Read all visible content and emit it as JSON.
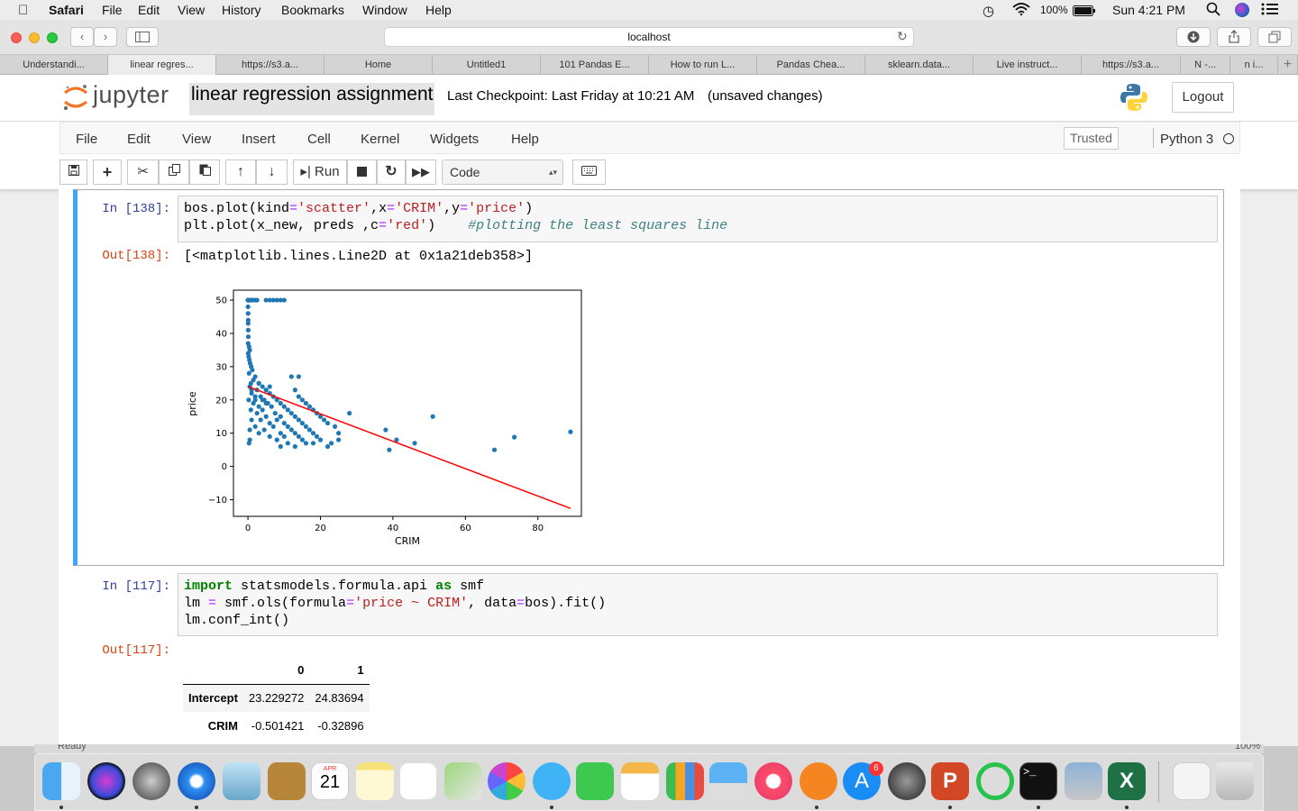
{
  "menubar": {
    "apple": "",
    "app": "Safari",
    "items": [
      "File",
      "Edit",
      "View",
      "History",
      "Bookmarks",
      "Window",
      "Help"
    ],
    "battery": "100%",
    "clock": "Sun 4:21 PM"
  },
  "browser": {
    "address": "localhost",
    "tabs": [
      "Understandi...",
      "linear regres...",
      "https://s3.a...",
      "Home",
      "Untitled1",
      "101 Pandas E...",
      "How to run L...",
      "Pandas Chea...",
      "sklearn.data...",
      "Live instruct...",
      "https://s3.a...",
      "N -...",
      "n i..."
    ],
    "active_tab": 1,
    "new_tab": "+"
  },
  "jupyter": {
    "logo": "jupyter",
    "notebook_name": "linear regression assignment",
    "checkpoint": "Last Checkpoint: Last Friday at 10:21 AM",
    "unsaved": "(unsaved changes)",
    "logout": "Logout",
    "menu": [
      "File",
      "Edit",
      "View",
      "Insert",
      "Cell",
      "Kernel",
      "Widgets",
      "Help"
    ],
    "trusted": "Trusted",
    "kernel": "Python 3",
    "run_label": "Run",
    "cell_type": "Code"
  },
  "cell1": {
    "in_prompt": "In [138]:",
    "out_prompt": "Out[138]:",
    "output_text": "[<matplotlib.lines.Line2D at 0x1a21deb358>]"
  },
  "cell2": {
    "in_prompt": "In [117]:",
    "out_prompt": "Out[117]:",
    "table": {
      "columns": [
        "",
        "0",
        "1"
      ],
      "rows": [
        [
          "Intercept",
          "23.229272",
          "24.83694"
        ],
        [
          "CRIM",
          "-0.501421",
          "-0.32896"
        ]
      ]
    }
  },
  "status": {
    "text": "Ready",
    "zoom": "100%"
  },
  "dock": {
    "calendar_month": "APR",
    "calendar_day": "21",
    "badge": "6"
  },
  "chart_data": {
    "type": "scatter",
    "xlabel": "CRIM",
    "ylabel": "price",
    "xlim": [
      -4,
      92
    ],
    "ylim": [
      -15,
      53
    ],
    "xticks": [
      0,
      20,
      40,
      60,
      80
    ],
    "yticks": [
      -10,
      0,
      10,
      20,
      30,
      40,
      50
    ],
    "grid": false,
    "series": [
      {
        "kind": "scatter",
        "color": "#1f77b4",
        "points": [
          [
            0.01,
            50
          ],
          [
            0.03,
            50
          ],
          [
            0.05,
            50
          ],
          [
            0.08,
            50
          ],
          [
            0.1,
            50
          ],
          [
            0.15,
            50
          ],
          [
            0.2,
            50
          ],
          [
            0.3,
            50
          ],
          [
            0.5,
            50
          ],
          [
            0.7,
            50
          ],
          [
            1.0,
            50
          ],
          [
            1.3,
            50
          ],
          [
            2.0,
            50
          ],
          [
            2.5,
            50
          ],
          [
            5,
            50
          ],
          [
            6,
            50
          ],
          [
            7,
            50
          ],
          [
            8,
            50
          ],
          [
            9,
            50
          ],
          [
            10,
            50
          ],
          [
            0.02,
            48
          ],
          [
            0.04,
            46
          ],
          [
            0.06,
            44
          ],
          [
            0.05,
            43
          ],
          [
            0.08,
            41
          ],
          [
            0.1,
            39
          ],
          [
            0.05,
            37
          ],
          [
            0.3,
            36
          ],
          [
            0.5,
            35
          ],
          [
            0.07,
            34
          ],
          [
            0.2,
            33
          ],
          [
            0.4,
            32
          ],
          [
            0.6,
            31
          ],
          [
            0.9,
            30
          ],
          [
            1.2,
            29
          ],
          [
            0.3,
            28
          ],
          [
            2.0,
            27
          ],
          [
            1.5,
            26
          ],
          [
            0.8,
            25
          ],
          [
            3.0,
            25
          ],
          [
            4.0,
            24
          ],
          [
            0.5,
            24
          ],
          [
            2.5,
            23
          ],
          [
            5.0,
            23
          ],
          [
            6.0,
            22
          ],
          [
            1.0,
            22
          ],
          [
            3.5,
            21
          ],
          [
            7.0,
            21
          ],
          [
            0.2,
            20
          ],
          [
            2.0,
            20
          ],
          [
            4.5,
            20
          ],
          [
            8.0,
            20
          ],
          [
            9.0,
            19
          ],
          [
            1.5,
            19
          ],
          [
            5.5,
            19
          ],
          [
            10.0,
            18
          ],
          [
            3.0,
            18
          ],
          [
            6.5,
            18
          ],
          [
            0.8,
            17
          ],
          [
            11.0,
            17
          ],
          [
            4.0,
            17
          ],
          [
            7.5,
            16
          ],
          [
            12.0,
            16
          ],
          [
            2.5,
            16
          ],
          [
            9.0,
            15
          ],
          [
            5.0,
            15
          ],
          [
            13.0,
            15
          ],
          [
            1.0,
            14
          ],
          [
            8.0,
            14
          ],
          [
            14.0,
            14
          ],
          [
            3.5,
            14
          ],
          [
            10.0,
            13
          ],
          [
            6.0,
            13
          ],
          [
            15.0,
            13
          ],
          [
            2.0,
            12
          ],
          [
            11.0,
            12
          ],
          [
            7.0,
            12
          ],
          [
            16.0,
            12
          ],
          [
            0.5,
            11
          ],
          [
            12.0,
            11
          ],
          [
            4.5,
            11
          ],
          [
            17.0,
            11
          ],
          [
            9.0,
            10
          ],
          [
            13.0,
            10
          ],
          [
            18.0,
            10
          ],
          [
            3.0,
            10
          ],
          [
            14.0,
            9
          ],
          [
            10.0,
            9
          ],
          [
            19.0,
            9
          ],
          [
            6.0,
            9
          ],
          [
            15.0,
            8
          ],
          [
            20.0,
            8
          ],
          [
            8.0,
            8
          ],
          [
            0.5,
            8
          ],
          [
            0.3,
            7
          ],
          [
            11.0,
            7
          ],
          [
            16.0,
            7
          ],
          [
            18.0,
            7
          ],
          [
            23.0,
            7
          ],
          [
            9.0,
            6
          ],
          [
            13.0,
            6
          ],
          [
            22.0,
            6
          ],
          [
            12.0,
            27
          ],
          [
            14.0,
            27
          ],
          [
            5,
            19
          ],
          [
            4,
            20
          ],
          [
            2,
            21
          ],
          [
            1,
            23
          ],
          [
            6,
            24
          ],
          [
            3,
            25
          ],
          [
            13,
            23
          ],
          [
            14,
            21
          ],
          [
            15,
            20
          ],
          [
            16,
            19
          ],
          [
            17,
            18
          ],
          [
            18,
            17
          ],
          [
            19,
            16
          ],
          [
            20,
            15
          ],
          [
            21,
            14
          ],
          [
            22,
            13
          ],
          [
            24,
            12
          ],
          [
            25,
            8
          ],
          [
            25,
            10
          ],
          [
            28,
            16
          ],
          [
            38,
            11
          ],
          [
            39,
            5
          ],
          [
            41,
            8
          ],
          [
            46,
            7
          ],
          [
            51,
            15
          ],
          [
            68,
            5
          ],
          [
            73.5,
            8.8
          ],
          [
            89,
            10.4
          ]
        ]
      },
      {
        "kind": "line",
        "color": "#ff0000",
        "points": [
          [
            0,
            24.03
          ],
          [
            89,
            -12.6
          ]
        ]
      }
    ]
  }
}
